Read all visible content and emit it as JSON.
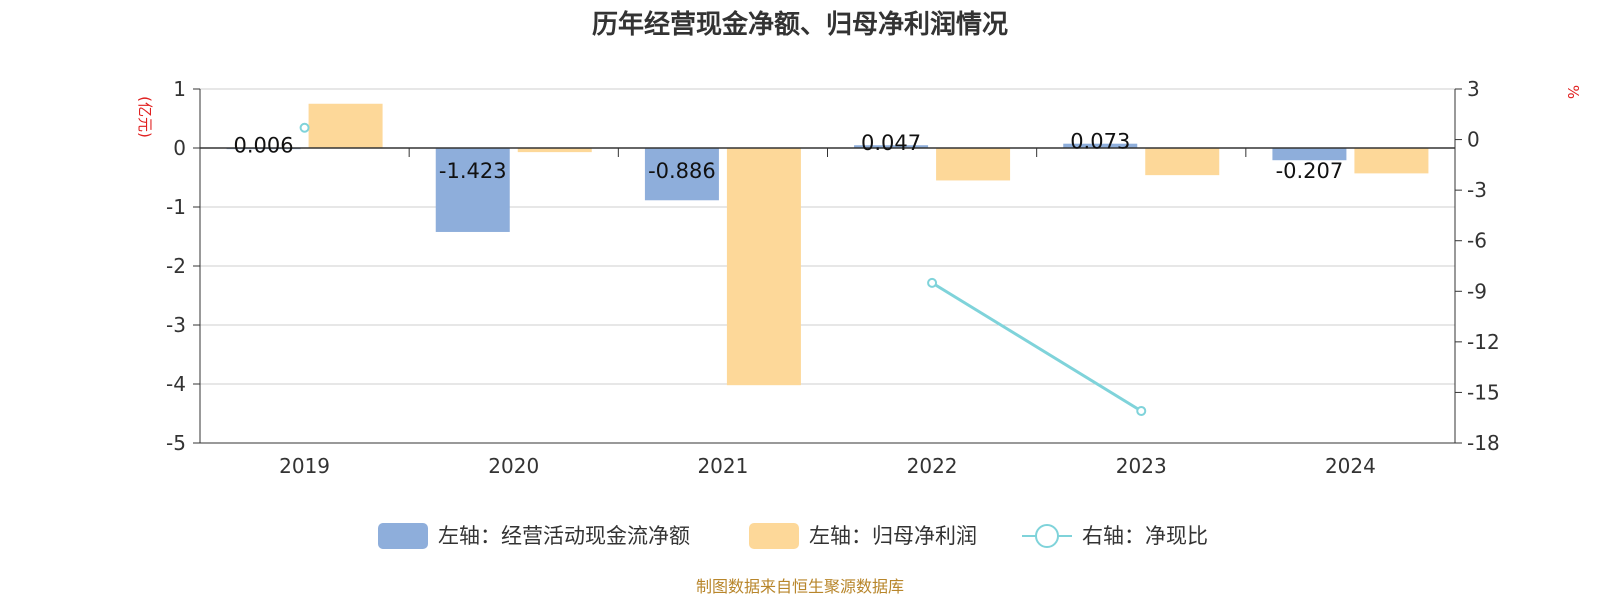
{
  "chart_data": {
    "type": "bar",
    "title": "历年经营现金净额、归母净利润情况",
    "categories": [
      "2019",
      "2020",
      "2021",
      "2022",
      "2023",
      "2024"
    ],
    "left_axis": {
      "unit": "(亿元)",
      "ylim": [
        -5,
        1
      ],
      "ticks": [
        "1",
        "0",
        "-1",
        "-2",
        "-3",
        "-4",
        "-5"
      ]
    },
    "right_axis": {
      "unit": "%",
      "ylim": [
        -18,
        3
      ],
      "ticks": [
        "3",
        "0",
        "-3",
        "-6",
        "-9",
        "-12",
        "-15",
        "-18"
      ]
    },
    "series": [
      {
        "name": "左轴：经营活动现金流净额",
        "type": "bar",
        "axis": "left",
        "color": "#8eaedb",
        "values": [
          0.006,
          -1.423,
          -0.886,
          0.047,
          0.073,
          -0.207
        ],
        "labels": [
          "0.006",
          "-1.423",
          "-0.886",
          "0.047",
          "0.073",
          "-0.207"
        ]
      },
      {
        "name": "左轴：归母净利润",
        "type": "bar",
        "axis": "left",
        "color": "#fdd899",
        "values": [
          0.75,
          -0.07,
          -4.02,
          -0.55,
          -0.46,
          -0.43
        ]
      },
      {
        "name": "右轴：净现比",
        "type": "line",
        "axis": "right",
        "color": "#7fd3da",
        "values": [
          0.7,
          null,
          null,
          -8.5,
          -16.1,
          null
        ]
      }
    ],
    "grid": true,
    "legend_position": "bottom"
  },
  "source": "制图数据来自恒生聚源数据库"
}
